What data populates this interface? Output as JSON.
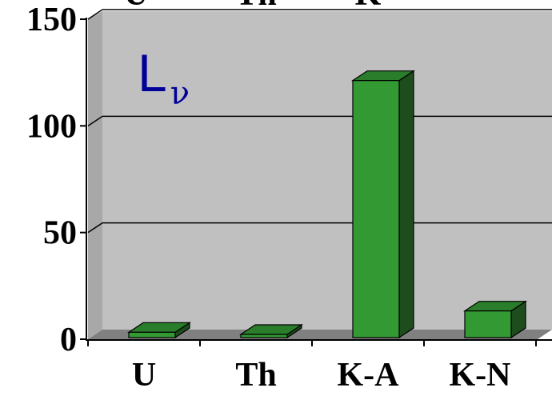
{
  "chart_data": {
    "type": "bar",
    "categories": [
      "U",
      "Th",
      "K-A",
      "K-N"
    ],
    "values": [
      4,
      3,
      122,
      14
    ],
    "ylim": [
      0,
      150
    ],
    "yticks": [
      0,
      50,
      100,
      150
    ],
    "grid": true,
    "annotation": {
      "main": "L",
      "sub": "ν"
    },
    "clipped_top_labels": [
      "U",
      "Th",
      "K"
    ]
  },
  "colors": {
    "bar_front": "#339933",
    "bar_top": "#2a7d2a",
    "bar_side": "#1d4d1d",
    "plot_back": "#c0c0c0",
    "plot_side": "#a8a8a8",
    "floor": "#808080",
    "annotation": "#000099"
  }
}
